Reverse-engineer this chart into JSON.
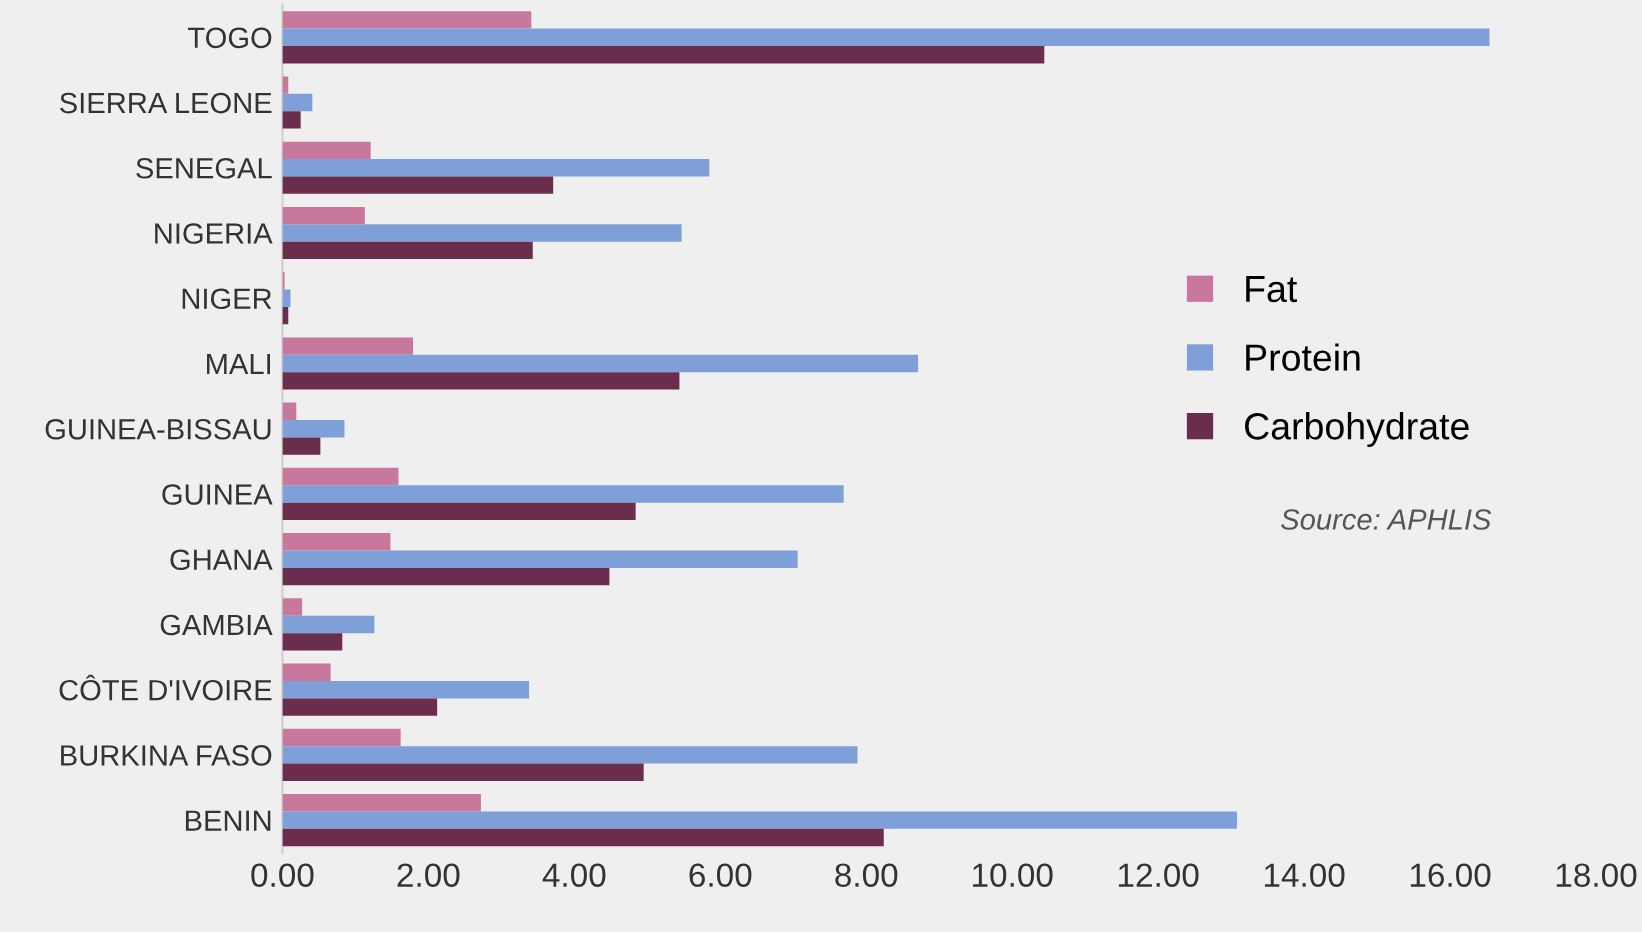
{
  "chart_data": {
    "type": "bar",
    "orientation": "horizontal",
    "categories": [
      "TOGO",
      "SIERRA LEONE",
      "SENEGAL",
      "NIGERIA",
      "NIGER",
      "MALI",
      "GUINEA-BISSAU",
      "GUINEA",
      "GHANA",
      "GAMBIA",
      "CÔTE D'IVOIRE",
      "BURKINA FASO",
      "BENIN"
    ],
    "series": [
      {
        "name": "Fat",
        "color": "#c9789d",
        "values": [
          3.41,
          0.08,
          1.21,
          1.13,
          0.03,
          1.79,
          0.19,
          1.59,
          1.48,
          0.27,
          0.66,
          1.62,
          2.72
        ]
      },
      {
        "name": "Protein",
        "color": "#7f9fd8",
        "values": [
          16.54,
          0.41,
          5.85,
          5.47,
          0.11,
          8.71,
          0.85,
          7.69,
          7.06,
          1.26,
          3.38,
          7.88,
          13.08
        ]
      },
      {
        "name": "Carbohydrate",
        "color": "#6b2d4e",
        "values": [
          10.44,
          0.25,
          3.71,
          3.43,
          0.08,
          5.44,
          0.52,
          4.84,
          4.48,
          0.82,
          2.12,
          4.95,
          8.24
        ]
      }
    ],
    "xlim": [
      0,
      18
    ],
    "xticks": [
      {
        "value": 0,
        "label": "0.00"
      },
      {
        "value": 2,
        "label": "2.00"
      },
      {
        "value": 4,
        "label": "4.00"
      },
      {
        "value": 6,
        "label": "6.00"
      },
      {
        "value": 8,
        "label": "8.00"
      },
      {
        "value": 10,
        "label": "10.00"
      },
      {
        "value": 12,
        "label": "12.00"
      },
      {
        "value": 14,
        "label": "14.00"
      },
      {
        "value": 16,
        "label": "16.00"
      },
      {
        "value": 18,
        "label": "18.00"
      }
    ],
    "grid": false,
    "legend": "right",
    "annotations": [
      "Source: APHLIS"
    ]
  }
}
